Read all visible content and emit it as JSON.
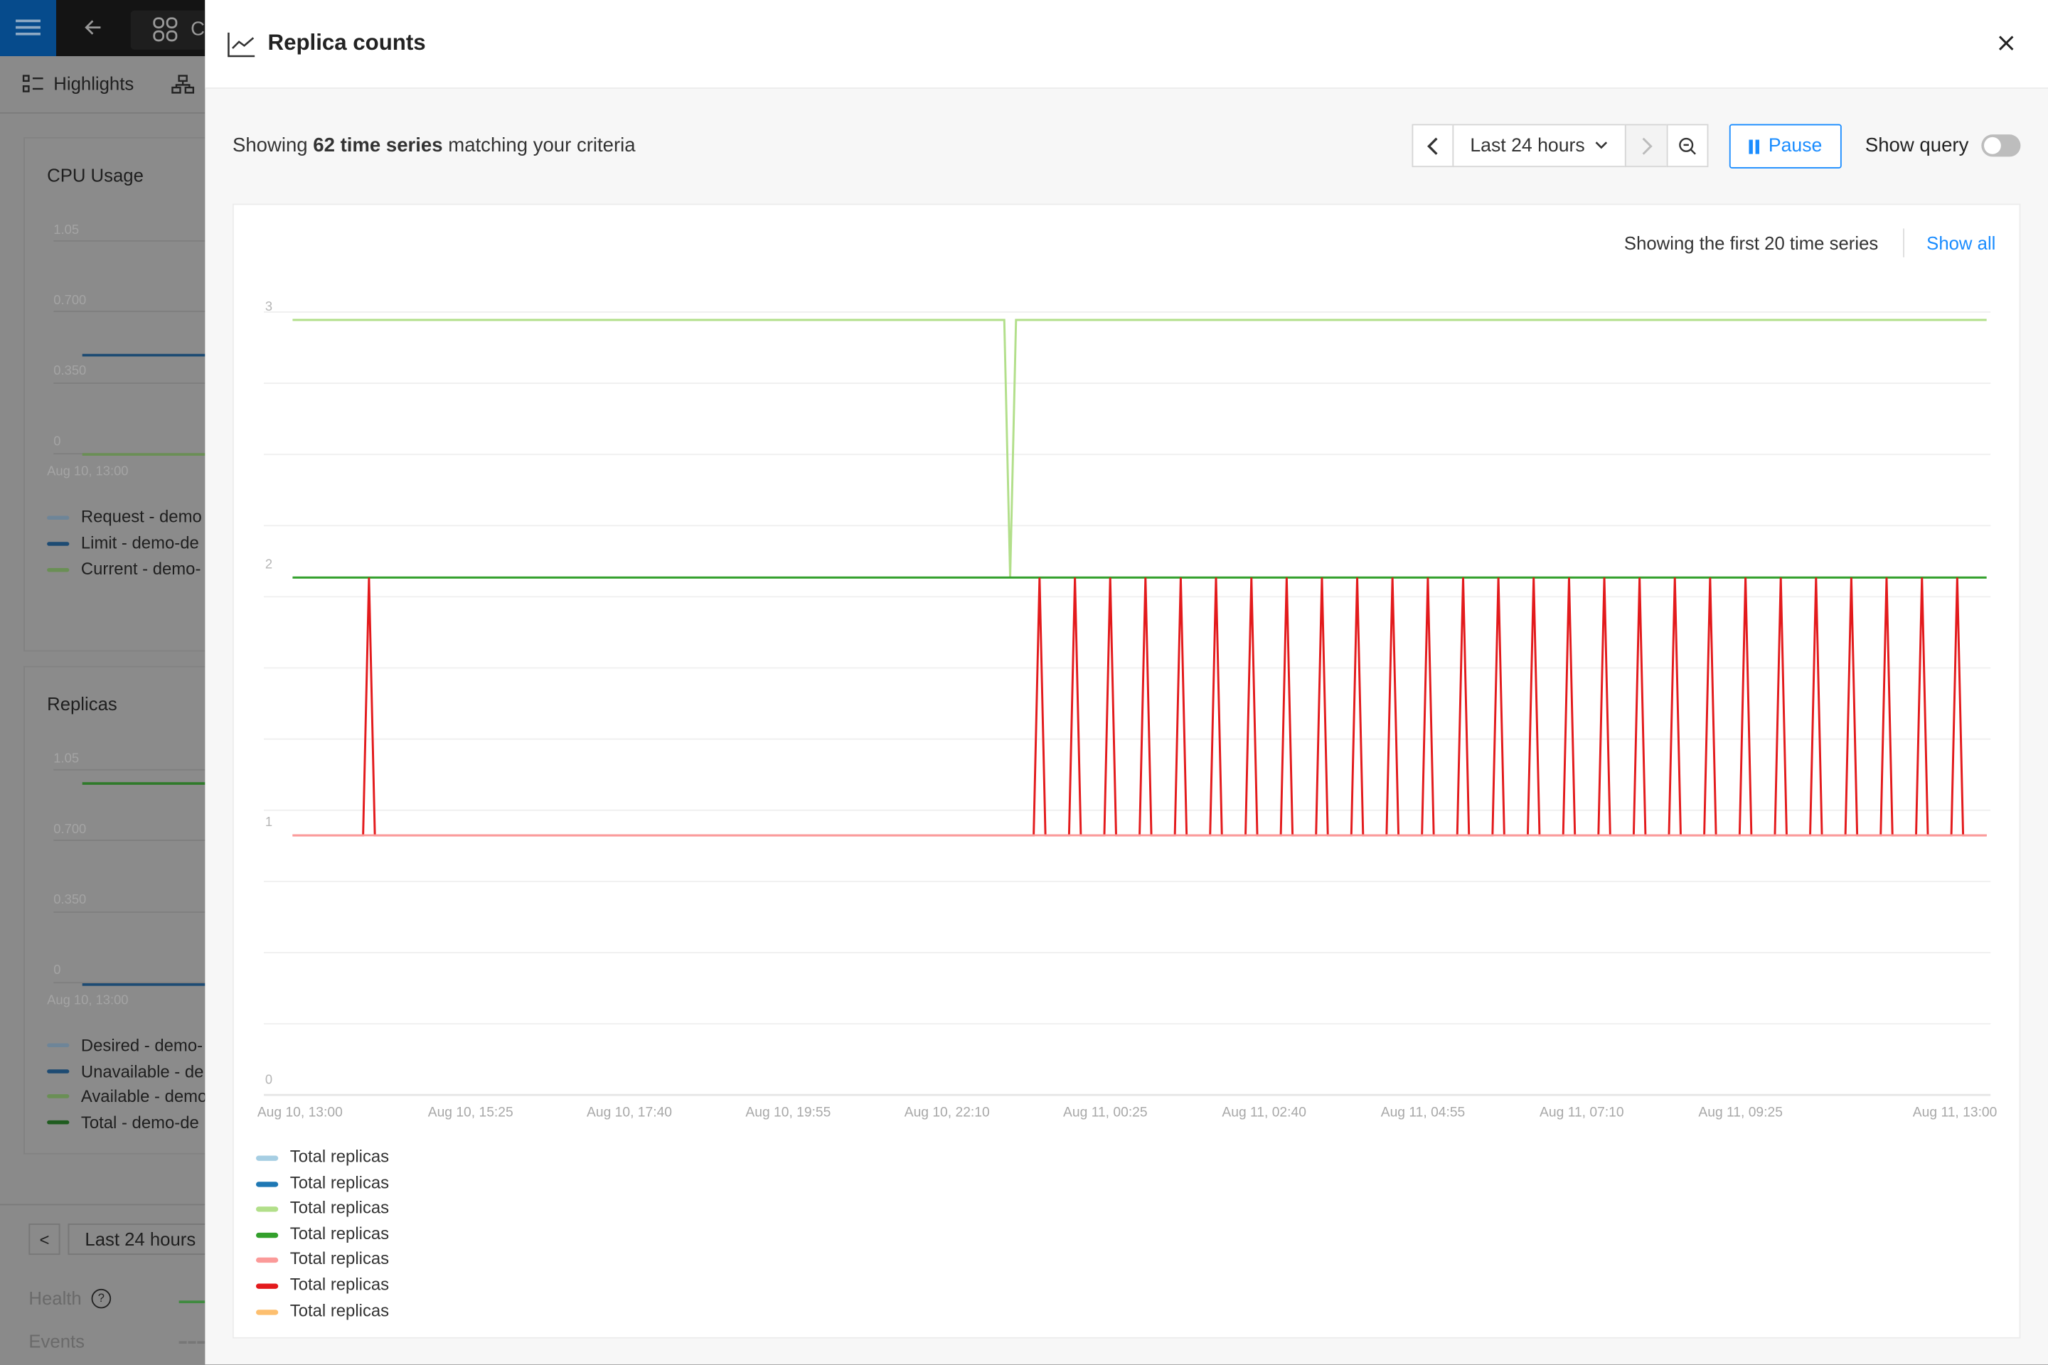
{
  "background_app": {
    "topbar": {
      "apps_label": "C"
    },
    "highlights_label": "Highlights",
    "cpu_card": {
      "title": "CPU Usage",
      "y_ticks": [
        "1.05",
        "0.700",
        "0.350",
        "0"
      ],
      "x_tick": "Aug 10, 13:00",
      "legend": [
        "Request - demo",
        "Limit - demo-de",
        "Current - demo-"
      ]
    },
    "replicas_card": {
      "title": "Replicas",
      "y_ticks": [
        "1.05",
        "0.700",
        "0.350",
        "0"
      ],
      "x_tick": "Aug 10, 13:00",
      "legend": [
        "Desired - demo-",
        "Unavailable - de",
        "Available - demo",
        "Total - demo-de"
      ]
    },
    "time_range": "Last 24 hours",
    "health_label": "Health",
    "events_label": "Events"
  },
  "modal": {
    "title": "Replica counts",
    "summary_prefix": "Showing ",
    "summary_bold": "62 time series",
    "summary_suffix": " matching your criteria",
    "time_range": "Last 24 hours",
    "pause_label": "Pause",
    "show_query_label": "Show query",
    "show_query_enabled": false,
    "limit_note": "Showing the first 20 time series",
    "show_all_label": "Show all"
  },
  "chart_data": {
    "type": "line",
    "ylim": [
      0,
      3
    ],
    "y_ticks": [
      "3",
      "2",
      "1",
      "0"
    ],
    "x_ticks": [
      "Aug 10, 13:00",
      "Aug 10, 15:25",
      "Aug 10, 17:40",
      "Aug 10, 19:55",
      "Aug 10, 22:10",
      "Aug 11, 00:25",
      "Aug 11, 02:40",
      "Aug 11, 04:55",
      "Aug 11, 07:10",
      "Aug 11, 09:25",
      "Aug 11, 13:00"
    ],
    "xlim": [
      "Aug 10, 13:00",
      "Aug 11, 13:00"
    ],
    "grid": true,
    "legend_position": "bottom-left",
    "series": [
      {
        "name": "Total replicas",
        "color": "#a6cee3",
        "points": []
      },
      {
        "name": "Total replicas",
        "color": "#1f78b4",
        "points": []
      },
      {
        "name": "Total replicas",
        "color": "#b2df8a",
        "points": [
          [
            "Aug 10, 13:00",
            3
          ],
          [
            "Aug 10, 23:05",
            3
          ],
          [
            "Aug 10, 23:10",
            2
          ],
          [
            "Aug 10, 23:15",
            3
          ],
          [
            "Aug 11, 13:00",
            3
          ]
        ]
      },
      {
        "name": "Total replicas",
        "color": "#33a02c",
        "points": [
          [
            "Aug 10, 13:00",
            2
          ],
          [
            "Aug 11, 13:00",
            2
          ]
        ]
      },
      {
        "name": "Total replicas",
        "color": "#fb9a99",
        "points": [
          [
            "Aug 10, 13:00",
            1
          ],
          [
            "Aug 11, 13:00",
            1
          ]
        ]
      },
      {
        "name": "Total replicas",
        "color": "#e31a1c",
        "points": [
          [
            "Aug 10, 13:00",
            1
          ],
          [
            "Aug 10, 14:00",
            1
          ],
          [
            "Aug 10, 14:05",
            2
          ],
          [
            "Aug 10, 14:10",
            1
          ],
          [
            "Aug 10, 23:30",
            1
          ],
          [
            "Aug 10, 23:35",
            2
          ],
          [
            "Aug 10, 23:40",
            1
          ],
          [
            "Aug 11, 00:00",
            1
          ],
          [
            "Aug 11, 00:05",
            2
          ],
          [
            "Aug 11, 00:10",
            1
          ],
          [
            "Aug 11, 00:30",
            1
          ],
          [
            "Aug 11, 00:35",
            2
          ],
          [
            "Aug 11, 00:40",
            1
          ],
          [
            "Aug 11, 01:00",
            1
          ],
          [
            "Aug 11, 01:05",
            2
          ],
          [
            "Aug 11, 01:10",
            1
          ],
          [
            "Aug 11, 01:30",
            1
          ],
          [
            "Aug 11, 01:35",
            2
          ],
          [
            "Aug 11, 01:40",
            1
          ],
          [
            "Aug 11, 02:00",
            1
          ],
          [
            "Aug 11, 02:05",
            2
          ],
          [
            "Aug 11, 02:10",
            1
          ],
          [
            "Aug 11, 02:30",
            1
          ],
          [
            "Aug 11, 02:35",
            2
          ],
          [
            "Aug 11, 02:40",
            1
          ],
          [
            "Aug 11, 03:00",
            1
          ],
          [
            "Aug 11, 03:05",
            2
          ],
          [
            "Aug 11, 03:10",
            1
          ],
          [
            "Aug 11, 03:30",
            1
          ],
          [
            "Aug 11, 03:35",
            2
          ],
          [
            "Aug 11, 03:40",
            1
          ],
          [
            "Aug 11, 04:00",
            1
          ],
          [
            "Aug 11, 04:05",
            2
          ],
          [
            "Aug 11, 04:10",
            1
          ],
          [
            "Aug 11, 04:30",
            1
          ],
          [
            "Aug 11, 04:35",
            2
          ],
          [
            "Aug 11, 04:40",
            1
          ],
          [
            "Aug 11, 05:00",
            1
          ],
          [
            "Aug 11, 05:05",
            2
          ],
          [
            "Aug 11, 05:10",
            1
          ],
          [
            "Aug 11, 05:30",
            1
          ],
          [
            "Aug 11, 05:35",
            2
          ],
          [
            "Aug 11, 05:40",
            1
          ],
          [
            "Aug 11, 06:00",
            1
          ],
          [
            "Aug 11, 06:05",
            2
          ],
          [
            "Aug 11, 06:10",
            1
          ],
          [
            "Aug 11, 06:30",
            1
          ],
          [
            "Aug 11, 06:35",
            2
          ],
          [
            "Aug 11, 06:40",
            1
          ],
          [
            "Aug 11, 07:00",
            1
          ],
          [
            "Aug 11, 07:05",
            2
          ],
          [
            "Aug 11, 07:10",
            1
          ],
          [
            "Aug 11, 07:30",
            1
          ],
          [
            "Aug 11, 07:35",
            2
          ],
          [
            "Aug 11, 07:40",
            1
          ],
          [
            "Aug 11, 08:00",
            1
          ],
          [
            "Aug 11, 08:05",
            2
          ],
          [
            "Aug 11, 08:10",
            1
          ],
          [
            "Aug 11, 08:30",
            1
          ],
          [
            "Aug 11, 08:35",
            2
          ],
          [
            "Aug 11, 08:40",
            1
          ],
          [
            "Aug 11, 09:00",
            1
          ],
          [
            "Aug 11, 09:05",
            2
          ],
          [
            "Aug 11, 09:10",
            1
          ],
          [
            "Aug 11, 09:30",
            1
          ],
          [
            "Aug 11, 09:35",
            2
          ],
          [
            "Aug 11, 09:40",
            1
          ],
          [
            "Aug 11, 10:00",
            1
          ],
          [
            "Aug 11, 10:05",
            2
          ],
          [
            "Aug 11, 10:10",
            1
          ],
          [
            "Aug 11, 10:30",
            1
          ],
          [
            "Aug 11, 10:35",
            2
          ],
          [
            "Aug 11, 10:40",
            1
          ],
          [
            "Aug 11, 11:00",
            1
          ],
          [
            "Aug 11, 11:05",
            2
          ],
          [
            "Aug 11, 11:10",
            1
          ],
          [
            "Aug 11, 11:30",
            1
          ],
          [
            "Aug 11, 11:35",
            2
          ],
          [
            "Aug 11, 11:40",
            1
          ],
          [
            "Aug 11, 12:00",
            1
          ],
          [
            "Aug 11, 12:05",
            2
          ],
          [
            "Aug 11, 12:10",
            1
          ],
          [
            "Aug 11, 12:30",
            1
          ],
          [
            "Aug 11, 12:35",
            2
          ],
          [
            "Aug 11, 12:40",
            1
          ],
          [
            "Aug 11, 13:00",
            1
          ]
        ]
      },
      {
        "name": "Total replicas",
        "color": "#fdbf6f",
        "points": []
      }
    ]
  }
}
